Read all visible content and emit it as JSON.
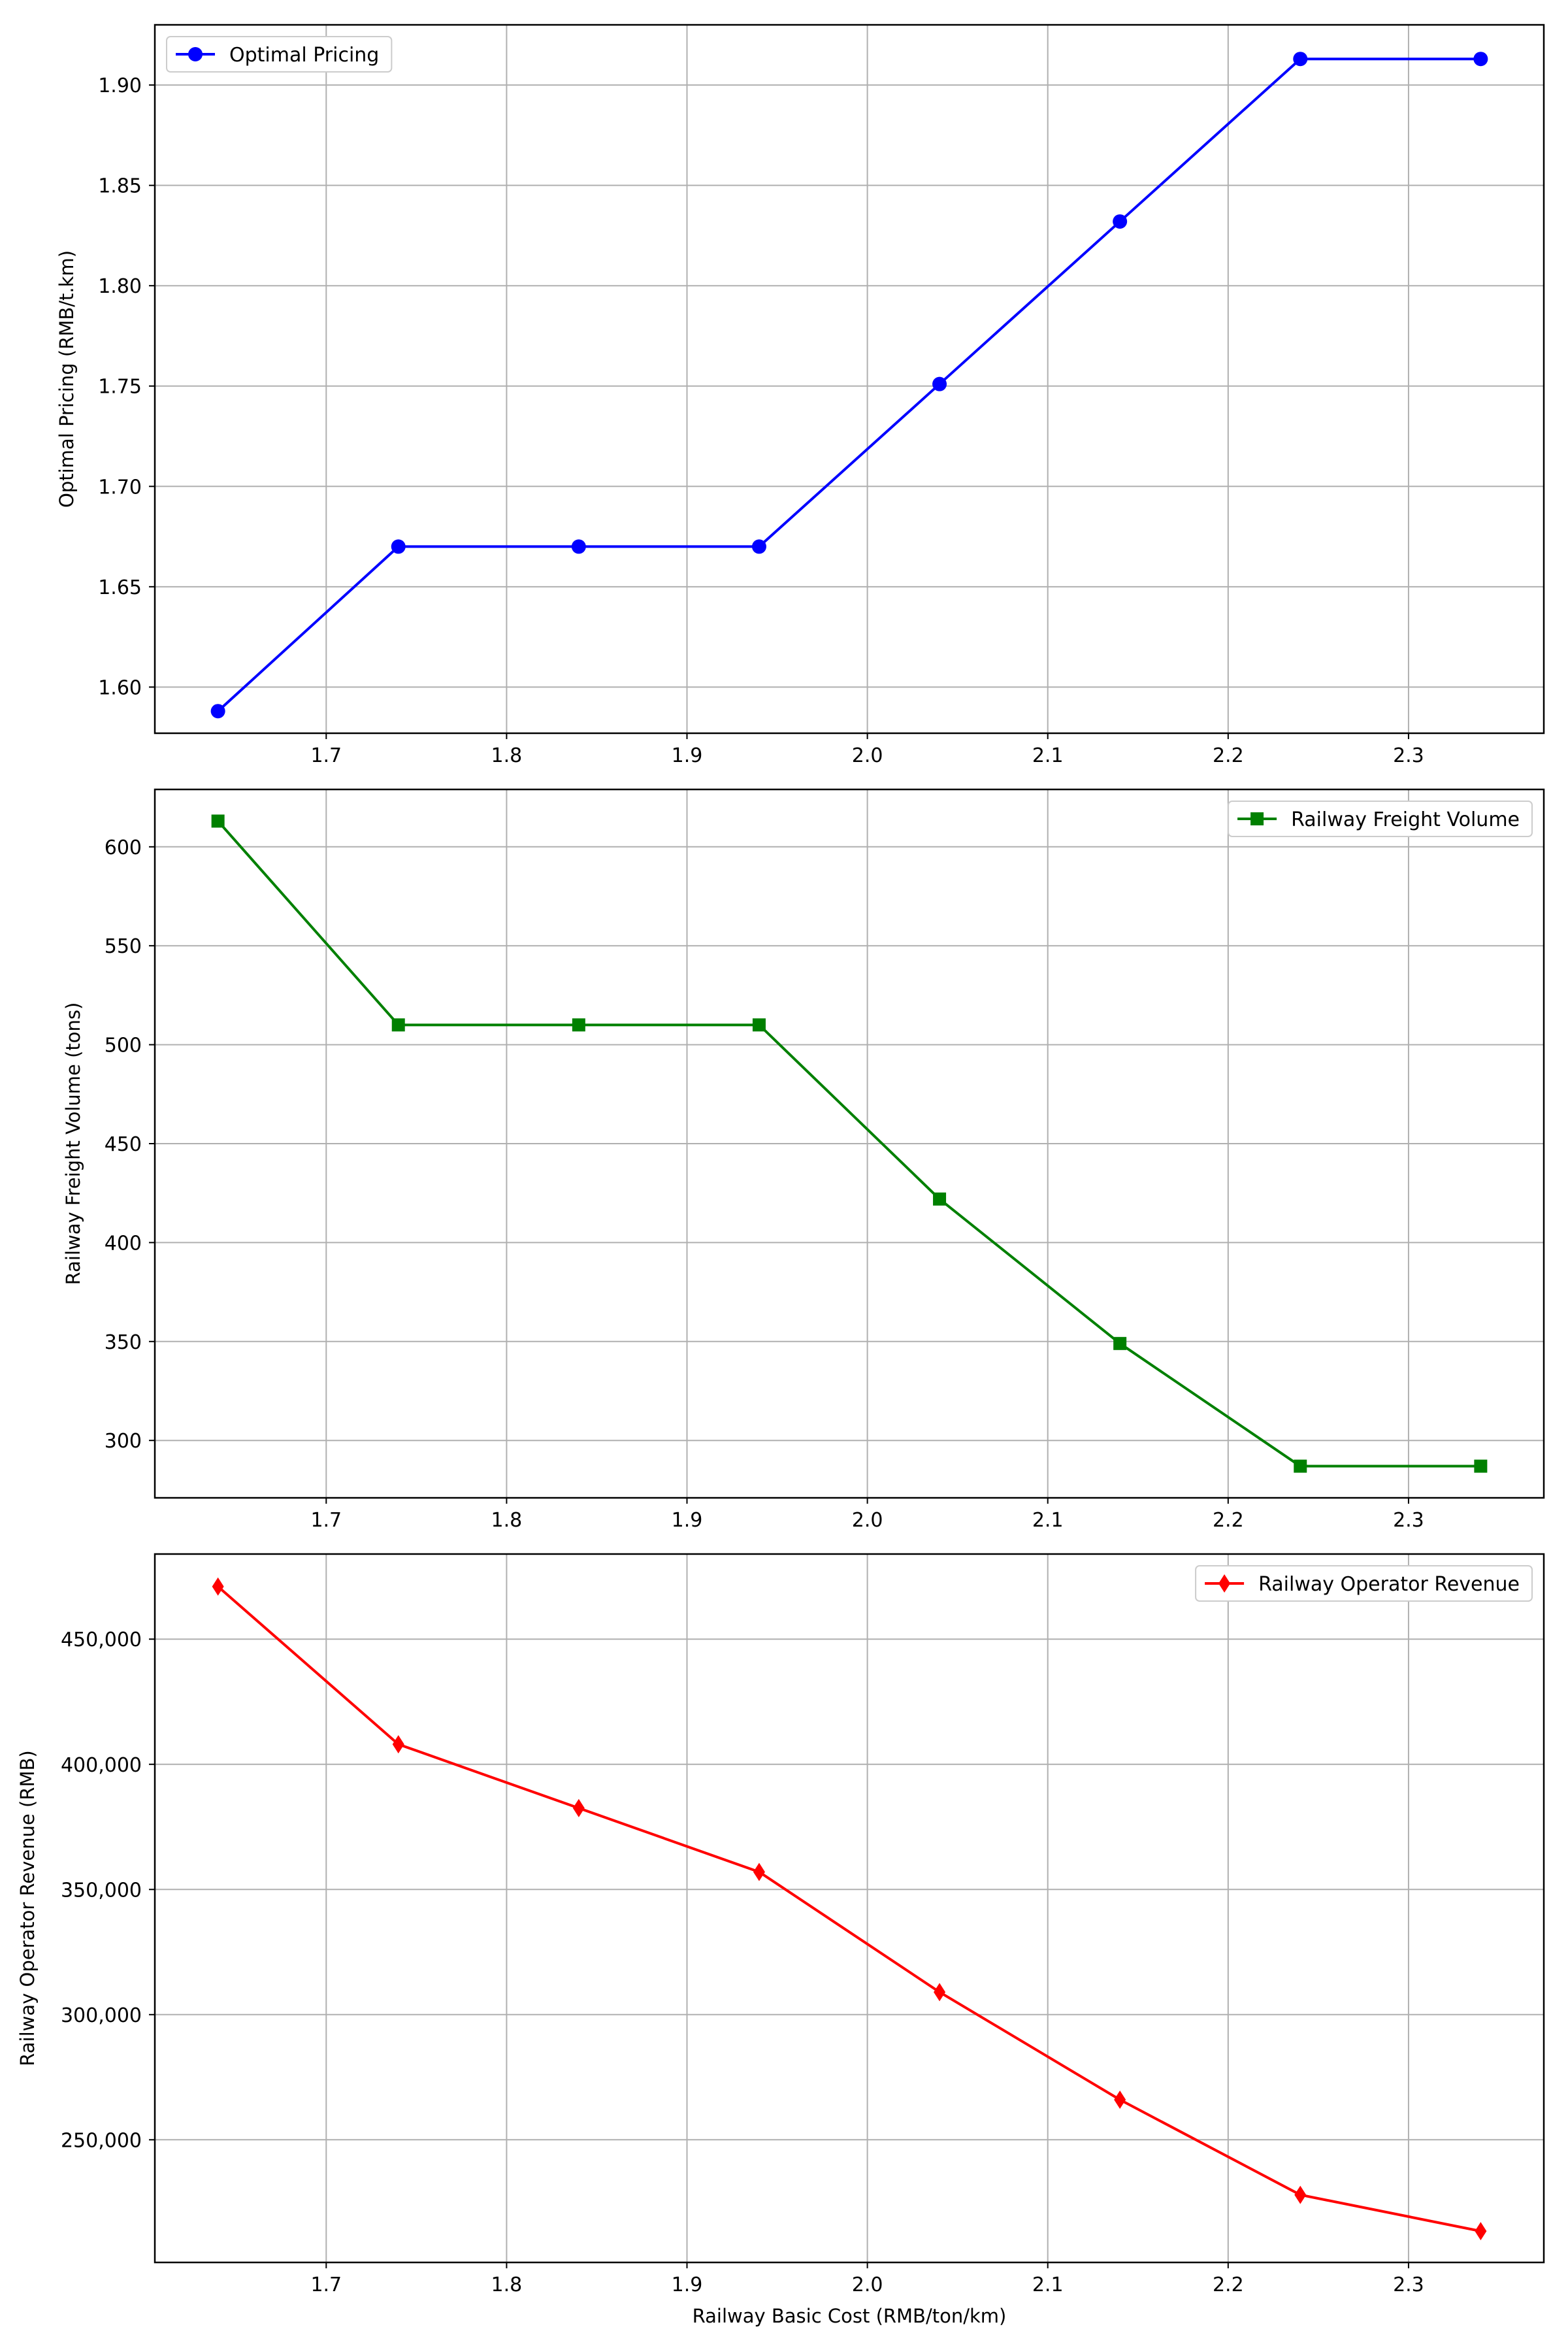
{
  "chart_data": [
    {
      "type": "line",
      "x": [
        1.64,
        1.74,
        1.84,
        1.94,
        2.04,
        2.14,
        2.24,
        2.34
      ],
      "series": [
        {
          "name": "Optimal Pricing",
          "values": [
            1.588,
            1.67,
            1.67,
            1.67,
            1.751,
            1.832,
            1.913,
            1.913
          ],
          "color": "#0000ff",
          "marker": "circle"
        }
      ],
      "xlabel": "",
      "ylabel": "Optimal Pricing (RMB/t.km)",
      "xlim": [
        1.605,
        2.375
      ],
      "ylim": [
        1.577,
        1.93
      ],
      "xticks": [
        1.7,
        1.8,
        1.9,
        2.0,
        2.1,
        2.2,
        2.3
      ],
      "xtick_labels": [
        "1.7",
        "1.8",
        "1.9",
        "2.0",
        "2.1",
        "2.2",
        "2.3"
      ],
      "yticks": [
        1.6,
        1.65,
        1.7,
        1.75,
        1.8,
        1.85,
        1.9
      ],
      "ytick_labels": [
        "1.60",
        "1.65",
        "1.70",
        "1.75",
        "1.80",
        "1.85",
        "1.90"
      ],
      "grid": true,
      "legend": "upper-left"
    },
    {
      "type": "line",
      "x": [
        1.64,
        1.74,
        1.84,
        1.94,
        2.04,
        2.14,
        2.24,
        2.34
      ],
      "series": [
        {
          "name": "Railway Freight Volume",
          "values": [
            613,
            510,
            510,
            510,
            422,
            349,
            287,
            287
          ],
          "color": "#008000",
          "marker": "square"
        }
      ],
      "xlabel": "",
      "ylabel": "Railway Freight Volume (tons)",
      "xlim": [
        1.605,
        2.375
      ],
      "ylim": [
        271,
        629
      ],
      "xticks": [
        1.7,
        1.8,
        1.9,
        2.0,
        2.1,
        2.2,
        2.3
      ],
      "xtick_labels": [
        "1.7",
        "1.8",
        "1.9",
        "2.0",
        "2.1",
        "2.2",
        "2.3"
      ],
      "yticks": [
        300,
        350,
        400,
        450,
        500,
        550,
        600
      ],
      "ytick_labels": [
        "300",
        "350",
        "400",
        "450",
        "500",
        "550",
        "600"
      ],
      "grid": true,
      "legend": "upper-right"
    },
    {
      "type": "line",
      "x": [
        1.64,
        1.74,
        1.84,
        1.94,
        2.04,
        2.14,
        2.24,
        2.34
      ],
      "series": [
        {
          "name": "Railway Operator Revenue",
          "values": [
            471000,
            408000,
            382500,
            357000,
            309000,
            266000,
            228000,
            213500
          ],
          "color": "#ff0000",
          "marker": "diamond"
        }
      ],
      "xlabel": "Railway Basic Cost (RMB/ton/km)",
      "ylabel": "Railway Operator Revenue (RMB)",
      "xlim": [
        1.605,
        2.375
      ],
      "ylim": [
        201000,
        484000
      ],
      "xticks": [
        1.7,
        1.8,
        1.9,
        2.0,
        2.1,
        2.2,
        2.3
      ],
      "xtick_labels": [
        "1.7",
        "1.8",
        "1.9",
        "2.0",
        "2.1",
        "2.2",
        "2.3"
      ],
      "yticks": [
        250000,
        300000,
        350000,
        400000,
        450000
      ],
      "ytick_labels": [
        "250,000",
        "300,000",
        "350,000",
        "400,000",
        "450,000"
      ],
      "grid": true,
      "legend": "upper-right"
    }
  ]
}
